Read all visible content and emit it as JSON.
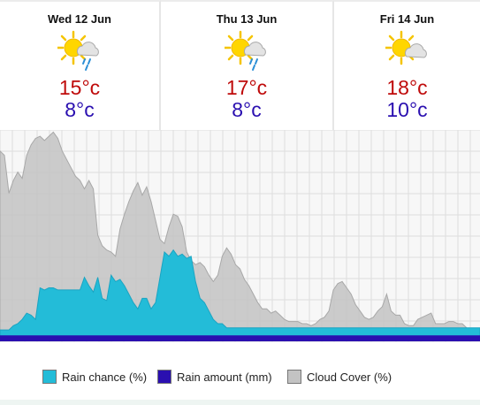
{
  "forecast": {
    "days": [
      {
        "label": "Wed 12 Jun",
        "max": "15°c",
        "min": "8°c",
        "icon": "sun-cloud-rain-icon"
      },
      {
        "label": "Thu 13 Jun",
        "max": "17°c",
        "min": "8°c",
        "icon": "sun-cloud-rain-icon"
      },
      {
        "label": "Fri 14 Jun",
        "max": "18°c",
        "min": "10°c",
        "icon": "sun-cloud-icon"
      }
    ]
  },
  "colors": {
    "rain_chance": "#23bcd8",
    "rain_amount": "#2a0fb0",
    "cloud_cover": "#c3c3c3",
    "max_temp": "#bf0a0a",
    "min_temp": "#2a0fb0"
  },
  "legend": {
    "rain_chance": "Rain chance (%)",
    "rain_amount": "Rain amount (mm)",
    "cloud_cover": "Cloud Cover (%)"
  },
  "chart_data": {
    "type": "area",
    "xlabel": "",
    "ylabel": "",
    "ylim": [
      0,
      100
    ],
    "grid": true,
    "series": [
      {
        "name": "Cloud Cover (%)",
        "values": [
          90,
          88,
          70,
          76,
          80,
          77,
          88,
          93,
          96,
          97,
          95,
          97,
          99,
          96,
          90,
          86,
          82,
          78,
          76,
          72,
          76,
          72,
          50,
          45,
          43,
          42,
          40,
          53,
          60,
          66,
          71,
          75,
          69,
          73,
          66,
          57,
          48,
          46,
          54,
          60,
          59,
          54,
          42,
          38,
          36,
          37,
          35,
          31,
          28,
          31,
          40,
          44,
          41,
          36,
          34,
          29,
          26,
          22,
          18,
          15,
          15,
          13,
          14,
          12,
          10,
          9,
          9,
          9,
          8,
          8,
          7,
          8,
          10,
          11,
          14,
          24,
          27,
          28,
          25,
          22,
          17,
          14,
          11,
          10,
          11,
          14,
          16,
          22,
          14,
          12,
          12,
          8,
          7,
          7,
          10,
          11,
          12,
          13,
          8,
          8,
          8,
          9,
          9,
          8,
          8,
          6,
          4,
          3,
          2
        ]
      },
      {
        "name": "Rain chance (%)",
        "values": [
          5,
          5,
          5,
          7,
          8,
          10,
          13,
          12,
          10,
          25,
          24,
          25,
          25,
          24,
          24,
          24,
          24,
          24,
          24,
          30,
          26,
          23,
          30,
          20,
          19,
          31,
          28,
          29,
          26,
          22,
          18,
          15,
          20,
          20,
          15,
          18,
          30,
          42,
          40,
          43,
          40,
          41,
          39,
          40,
          28,
          20,
          18,
          14,
          10,
          8,
          8,
          6,
          6,
          6,
          6,
          6,
          6,
          6,
          6,
          6,
          6,
          6,
          6,
          6,
          6,
          6,
          6,
          6,
          6,
          6,
          6,
          6,
          6,
          6,
          6,
          6,
          6,
          6,
          6,
          6,
          6,
          6,
          6,
          6,
          6,
          6,
          6,
          6,
          6,
          6,
          6,
          6,
          6,
          6,
          6,
          6,
          6,
          6,
          6,
          6,
          6,
          6,
          6,
          6,
          6,
          6,
          6,
          6,
          6
        ]
      },
      {
        "name": "Rain amount (mm)",
        "values": [
          0.1,
          0.1,
          0.1,
          0.1,
          0.1,
          0.1,
          0.1,
          0.1,
          0.1,
          0.1,
          0.1,
          0.1,
          0.1,
          0.1,
          0.1,
          0.1,
          0.1,
          0.1,
          0.1,
          0.1,
          0.1,
          0.1,
          0.1,
          0.1,
          0.1,
          0.1,
          0.1,
          0.1,
          0.1,
          0.1,
          0.1,
          0.1,
          0.1,
          0.1,
          0.1,
          0.1,
          0.1,
          0.1,
          0.1,
          0.1,
          0.1,
          0.1,
          0.1,
          0.1,
          0.1,
          0.1,
          0.1,
          0.1,
          0.1,
          0.1,
          0.1,
          0.1,
          0.1,
          0.1,
          0.1,
          0.1,
          0.1,
          0.1,
          0.1,
          0.1,
          0.1,
          0.1,
          0.1,
          0.1,
          0.1,
          0.1,
          0.1,
          0.1,
          0.1,
          0.1,
          0.1,
          0.1,
          0.1,
          0.1,
          0.1,
          0.1,
          0.1,
          0.1,
          0.1,
          0.1,
          0.1,
          0.1,
          0.1,
          0.1,
          0.1,
          0.1,
          0.1,
          0.1,
          0.1,
          0.1,
          0.1,
          0.1,
          0.1,
          0.1,
          0.1,
          0.1,
          0.1,
          0.1,
          0.1,
          0.1,
          0.1,
          0.1,
          0.1,
          0.1,
          0.1,
          0.1,
          0.1,
          0.1,
          0.1
        ]
      }
    ]
  }
}
